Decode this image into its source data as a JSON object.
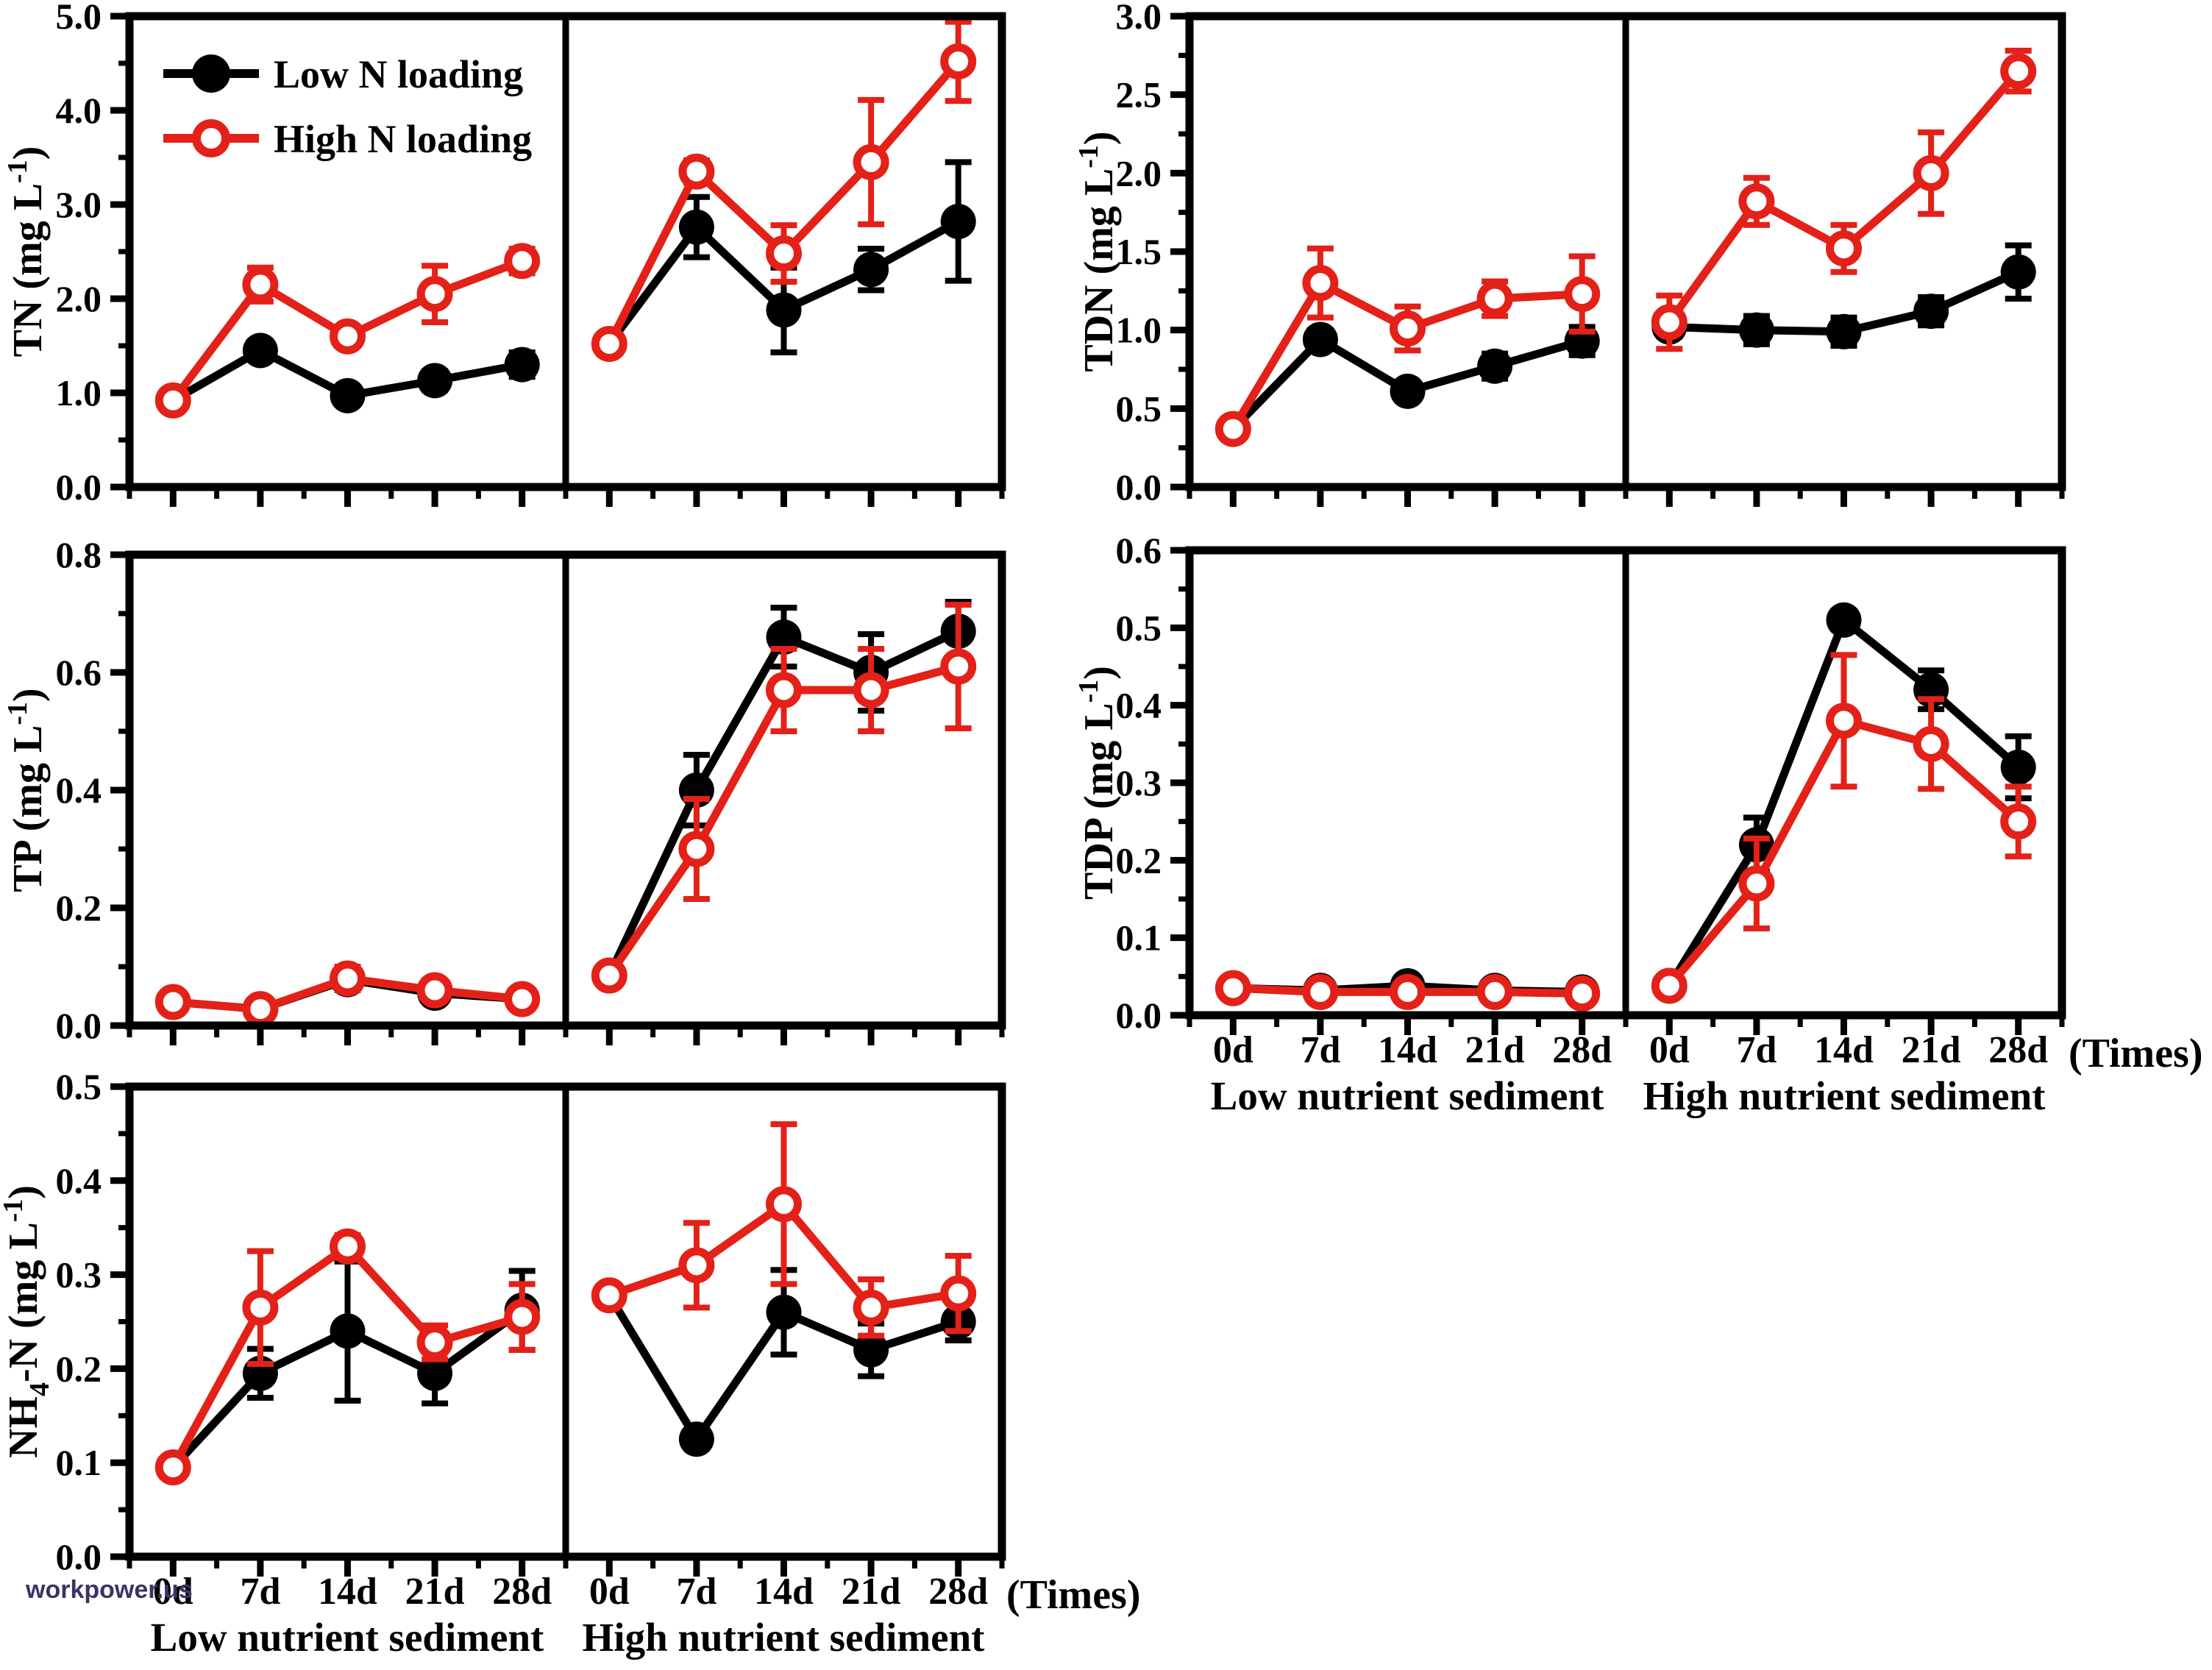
{
  "watermark": "workpower.us",
  "times_label": "(Times)",
  "panel_labels": {
    "low": "Low nutrient sediment",
    "high": "High nutrient sediment"
  },
  "legend": {
    "items": [
      {
        "label": "Low N loading",
        "series": "low_n"
      },
      {
        "label": "High N loading",
        "series": "high_n"
      }
    ]
  },
  "colors": {
    "low_n": "#000000",
    "high_n": "#e32118"
  },
  "chart_data": [
    {
      "id": "tn",
      "type": "line",
      "ylabel": [
        {
          "t": "TN (mg L"
        },
        {
          "t": "-1",
          "sup": true
        },
        {
          "t": ")"
        }
      ],
      "ylim": [
        0,
        5
      ],
      "ytick_step": 1,
      "ytick_labels": [
        "0.0",
        "1.0",
        "2.0",
        "3.0",
        "4.0",
        "5.0"
      ],
      "categories": [
        "0d",
        "7d",
        "14d",
        "21d",
        "28d"
      ],
      "show_x_labels": false,
      "panels": [
        {
          "name": "Low nutrient sediment",
          "series": [
            {
              "name": "Low N loading",
              "key": "low_n",
              "values": [
                0.92,
                1.45,
                0.97,
                1.13,
                1.3
              ],
              "errors": [
                0.06,
                0.1,
                0.08,
                0.1,
                0.13
              ]
            },
            {
              "name": "High N loading",
              "key": "high_n",
              "values": [
                0.92,
                2.15,
                1.6,
                2.05,
                2.4
              ],
              "errors": [
                0.1,
                0.18,
                0.1,
                0.3,
                0.13
              ]
            }
          ]
        },
        {
          "name": "High nutrient sediment",
          "series": [
            {
              "name": "Low N loading",
              "key": "low_n",
              "values": [
                1.52,
                2.76,
                1.88,
                2.31,
                2.82
              ],
              "errors": [
                0.06,
                0.32,
                0.45,
                0.22,
                0.63
              ]
            },
            {
              "name": "High N loading",
              "key": "high_n",
              "values": [
                1.52,
                3.35,
                2.48,
                3.45,
                4.52
              ],
              "errors": [
                0.08,
                0.12,
                0.3,
                0.66,
                0.42
              ]
            }
          ]
        }
      ]
    },
    {
      "id": "tdn",
      "type": "line",
      "ylabel": [
        {
          "t": "TDN (mg L"
        },
        {
          "t": "-1",
          "sup": true
        },
        {
          "t": ")"
        }
      ],
      "ylim": [
        0,
        3
      ],
      "ytick_step": 0.5,
      "ytick_labels": [
        "0.0",
        "0.5",
        "1.0",
        "1.5",
        "2.0",
        "2.5",
        "3.0"
      ],
      "categories": [
        "0d",
        "7d",
        "14d",
        "21d",
        "28d"
      ],
      "show_x_labels": false,
      "panels": [
        {
          "name": "Low nutrient sediment",
          "series": [
            {
              "name": "Low N loading",
              "key": "low_n",
              "values": [
                0.37,
                0.94,
                0.61,
                0.77,
                0.93
              ],
              "errors": [
                0.03,
                0.06,
                0.05,
                0.08,
                0.09
              ]
            },
            {
              "name": "High N loading",
              "key": "high_n",
              "values": [
                0.37,
                1.3,
                1.01,
                1.2,
                1.23
              ],
              "errors": [
                0.04,
                0.22,
                0.14,
                0.11,
                0.24
              ]
            }
          ]
        },
        {
          "name": "High nutrient sediment",
          "series": [
            {
              "name": "Low N loading",
              "key": "low_n",
              "values": [
                1.02,
                1.0,
                0.99,
                1.12,
                1.37
              ],
              "errors": [
                0.06,
                0.09,
                0.09,
                0.09,
                0.17
              ]
            },
            {
              "name": "High N loading",
              "key": "high_n",
              "values": [
                1.05,
                1.82,
                1.52,
                2.0,
                2.65
              ],
              "errors": [
                0.17,
                0.15,
                0.15,
                0.26,
                0.13
              ]
            }
          ]
        }
      ]
    },
    {
      "id": "tp",
      "type": "line",
      "ylabel": [
        {
          "t": "TP (mg L"
        },
        {
          "t": "-1",
          "sup": true
        },
        {
          "t": ")"
        }
      ],
      "ylim": [
        0,
        0.8
      ],
      "ytick_step": 0.2,
      "ytick_labels": [
        "0.0",
        "0.2",
        "0.4",
        "0.6",
        "0.8"
      ],
      "categories": [
        "0d",
        "7d",
        "14d",
        "21d",
        "28d"
      ],
      "show_x_labels": false,
      "panels": [
        {
          "name": "Low nutrient sediment",
          "series": [
            {
              "name": "Low N loading",
              "key": "low_n",
              "values": [
                0.04,
                0.028,
                0.078,
                0.055,
                0.045
              ],
              "errors": [
                0.008,
                0.008,
                0.018,
                0.012,
                0.008
              ]
            },
            {
              "name": "High N loading",
              "key": "high_n",
              "values": [
                0.04,
                0.028,
                0.08,
                0.06,
                0.045
              ],
              "errors": [
                0.01,
                0.01,
                0.02,
                0.012,
                0.01
              ]
            }
          ]
        },
        {
          "name": "High nutrient sediment",
          "series": [
            {
              "name": "Low N loading",
              "key": "low_n",
              "values": [
                0.085,
                0.4,
                0.66,
                0.6,
                0.67
              ],
              "errors": [
                0.01,
                0.06,
                0.05,
                0.065,
                0.05
              ]
            },
            {
              "name": "High N loading",
              "key": "high_n",
              "values": [
                0.085,
                0.3,
                0.57,
                0.57,
                0.61
              ],
              "errors": [
                0.01,
                0.085,
                0.07,
                0.07,
                0.105
              ]
            }
          ]
        }
      ]
    },
    {
      "id": "tdp",
      "type": "line",
      "ylabel": [
        {
          "t": "TDP (mg L"
        },
        {
          "t": "-1",
          "sup": true
        },
        {
          "t": ")"
        }
      ],
      "ylim": [
        0,
        0.6
      ],
      "ytick_step": 0.1,
      "ytick_labels": [
        "0.0",
        "0.1",
        "0.2",
        "0.3",
        "0.4",
        "0.5",
        "0.6"
      ],
      "categories": [
        "0d",
        "7d",
        "14d",
        "21d",
        "28d"
      ],
      "show_x_labels": true,
      "panels": [
        {
          "name": "Low nutrient sediment",
          "series": [
            {
              "name": "Low N loading",
              "key": "low_n",
              "values": [
                0.035,
                0.032,
                0.038,
                0.032,
                0.03
              ],
              "errors": [
                0.004,
                0.004,
                0.005,
                0.004,
                0.004
              ]
            },
            {
              "name": "High N loading",
              "key": "high_n",
              "values": [
                0.035,
                0.03,
                0.03,
                0.03,
                0.028
              ],
              "errors": [
                0.004,
                0.004,
                0.004,
                0.004,
                0.004
              ]
            }
          ]
        },
        {
          "name": "High nutrient sediment",
          "series": [
            {
              "name": "Low N loading",
              "key": "low_n",
              "values": [
                0.038,
                0.22,
                0.51,
                0.42,
                0.32
              ],
              "errors": [
                0.005,
                0.035,
                0.012,
                0.025,
                0.04
              ]
            },
            {
              "name": "High N loading",
              "key": "high_n",
              "values": [
                0.038,
                0.17,
                0.38,
                0.35,
                0.25
              ],
              "errors": [
                0.005,
                0.058,
                0.085,
                0.058,
                0.045
              ]
            }
          ]
        }
      ]
    },
    {
      "id": "nh4",
      "type": "line",
      "ylabel": [
        {
          "t": "NH"
        },
        {
          "t": "4",
          "sub": true
        },
        {
          "t": "-N (mg L"
        },
        {
          "t": "-1",
          "sup": true
        },
        {
          "t": ")"
        }
      ],
      "ylim": [
        0,
        0.5
      ],
      "ytick_step": 0.1,
      "ytick_labels": [
        "0.0",
        "0.1",
        "0.2",
        "0.3",
        "0.4",
        "0.5"
      ],
      "categories": [
        "0d",
        "7d",
        "14d",
        "21d",
        "28d"
      ],
      "show_x_labels": true,
      "panels": [
        {
          "name": "Low nutrient sediment",
          "series": [
            {
              "name": "Low N loading",
              "key": "low_n",
              "values": [
                0.095,
                0.195,
                0.24,
                0.195,
                0.262
              ],
              "errors": [
                0.006,
                0.026,
                0.074,
                0.032,
                0.042
              ]
            },
            {
              "name": "High N loading",
              "key": "high_n",
              "values": [
                0.095,
                0.265,
                0.33,
                0.228,
                0.255
              ],
              "errors": [
                0.006,
                0.06,
                0.012,
                0.018,
                0.035
              ]
            }
          ]
        },
        {
          "name": "High nutrient sediment",
          "series": [
            {
              "name": "Low N loading",
              "key": "low_n",
              "values": [
                0.278,
                0.125,
                0.26,
                0.22,
                0.25
              ],
              "errors": [
                0.005,
                0.005,
                0.045,
                0.028,
                0.02
              ]
            },
            {
              "name": "High N loading",
              "key": "high_n",
              "values": [
                0.278,
                0.31,
                0.375,
                0.265,
                0.28
              ],
              "errors": [
                0.01,
                0.045,
                0.085,
                0.03,
                0.04
              ]
            }
          ]
        }
      ]
    }
  ]
}
